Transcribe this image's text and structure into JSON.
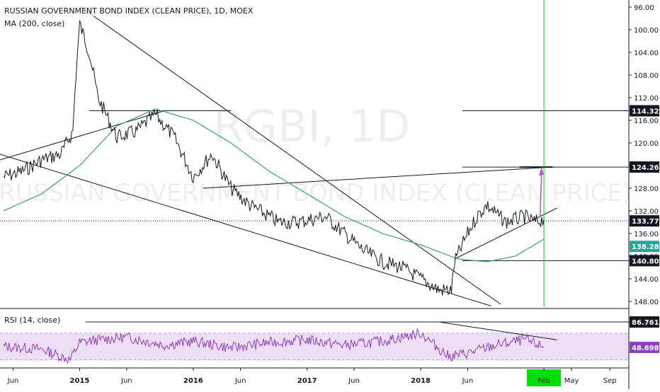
{
  "header": {
    "title": "RUSSIAN GOVERNMENT BOND INDEX (CLEAN PRICE), 1D, MOEX",
    "ma_label": "MA (200, close)",
    "rsi_label": "RSI (14, close)"
  },
  "watermark": {
    "symbol": "RGBI, 1D",
    "name": "RUSSIAN GOVERNMENT BOND INDEX (CLEAN PRICE)"
  },
  "colors": {
    "price": "#131722",
    "ma": "#3f9a8c",
    "rsi": "#8e3fbf",
    "rsi_band": "#e9d5f2",
    "vertical_marker": "#00d400",
    "arrow": "#b35ac8",
    "marker_badge": "#26a69a"
  },
  "chart_data": [
    {
      "type": "line",
      "panel": "price",
      "title": "RUSSIAN GOVERNMENT BOND INDEX (CLEAN PRICE), 1D, MOEX",
      "y_axis": "inverted",
      "ylim": [
        149,
        95.5
      ],
      "y_ticks": [
        "96.00",
        "100.00",
        "104.00",
        "108.00",
        "112.00",
        "116.00",
        "120.00",
        "124.00",
        "128.00",
        "132.00",
        "136.00",
        "140.00",
        "144.00",
        "148.00"
      ],
      "x_ticks": [
        "Jun",
        "2015",
        "Jun",
        "2016",
        "Jun",
        "2017",
        "Jun",
        "2018",
        "Jun",
        "Feb",
        "May",
        "Sep"
      ],
      "series": [
        {
          "name": "RGBI",
          "x": [
            "2014-05",
            "2014-07",
            "2014-09",
            "2014-11",
            "2014-12-10",
            "2014-12-20",
            "2015-01",
            "2015-02",
            "2015-03",
            "2015-05",
            "2015-07",
            "2015-09",
            "2015-11",
            "2016-01",
            "2016-03",
            "2016-05",
            "2016-07",
            "2016-10",
            "2016-12",
            "2017-03",
            "2017-05",
            "2017-07",
            "2017-09",
            "2017-11",
            "2018-01",
            "2018-03",
            "2018-04-10",
            "2018-04-20",
            "2018-06",
            "2018-07",
            "2018-08",
            "2018-10",
            "2018-12",
            "2019-01",
            "2019-02"
          ],
          "values": [
            126,
            125,
            123,
            122,
            118,
            108,
            99,
            104,
            112,
            119,
            118,
            115,
            119,
            126,
            122,
            128,
            131,
            134,
            134,
            133,
            136,
            139,
            141,
            142,
            144,
            146,
            146,
            141,
            136,
            133,
            131,
            134,
            133,
            134,
            133.5
          ]
        },
        {
          "name": "MA (200, close)",
          "x": [
            "2014-05",
            "2014-09",
            "2015-01",
            "2015-05",
            "2015-09",
            "2016-01",
            "2016-05",
            "2016-09",
            "2017-01",
            "2017-05",
            "2017-09",
            "2018-01",
            "2018-05",
            "2018-08",
            "2018-11",
            "2019-02"
          ],
          "values": [
            132,
            129,
            124,
            117,
            114,
            116,
            120,
            125,
            129,
            133,
            136,
            138,
            140.5,
            141,
            140,
            137
          ]
        }
      ],
      "levels": [
        "114.32",
        "124.26",
        "133.77",
        "140.80"
      ],
      "badges": [
        "114.32",
        "124.26",
        "133.77",
        "138.28",
        "140.80"
      ]
    },
    {
      "type": "line",
      "panel": "rsi",
      "title": "RSI (14, close)",
      "ylim": [
        20,
        90
      ],
      "levels": [
        70,
        30
      ],
      "badges": [
        "86.7612",
        "48.6986"
      ],
      "series": [
        {
          "name": "RSI (14, close)",
          "x": [
            "2014-05",
            "2014-09",
            "2014-12",
            "2015-01",
            "2015-03",
            "2015-06",
            "2015-10",
            "2016-01",
            "2016-05",
            "2016-09",
            "2017-01",
            "2017-05",
            "2017-09",
            "2018-01",
            "2018-04",
            "2018-06",
            "2018-09",
            "2018-12",
            "2019-02"
          ],
          "values": [
            50,
            46,
            30,
            56,
            60,
            64,
            52,
            58,
            48,
            56,
            60,
            52,
            58,
            70,
            35,
            40,
            52,
            60,
            49
          ]
        }
      ]
    }
  ]
}
